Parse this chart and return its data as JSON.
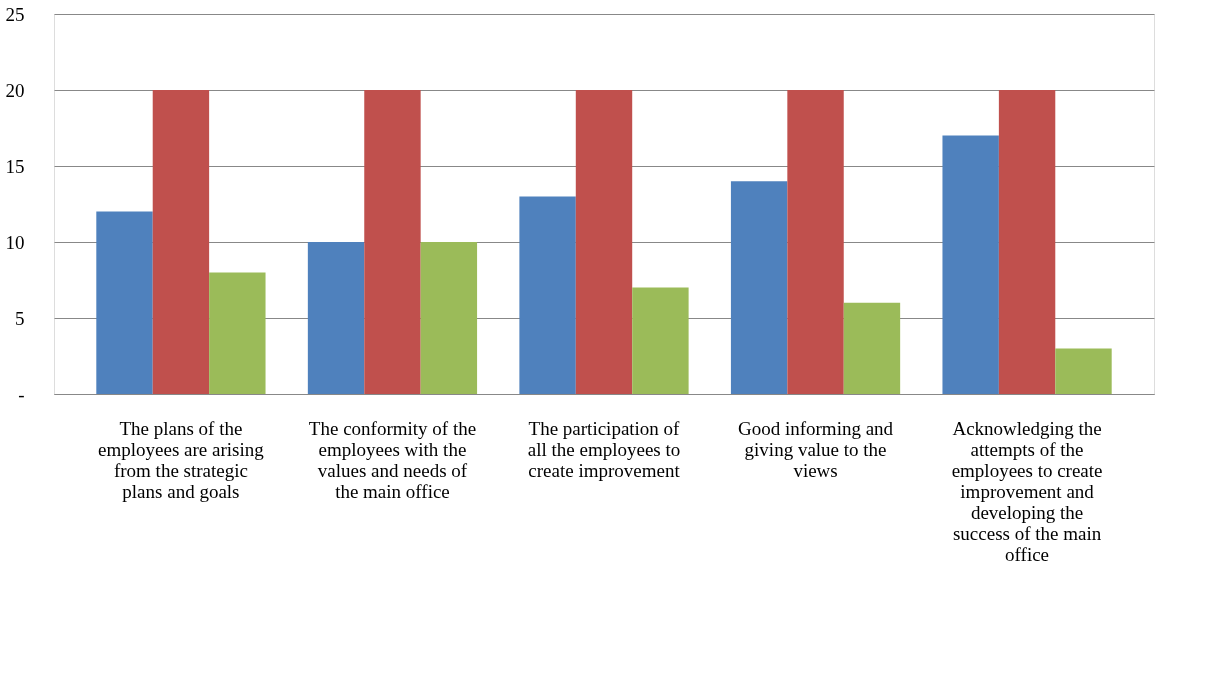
{
  "chart_data": {
    "type": "bar",
    "categories": [
      "The plans of the employees are arising from the strategic plans and goals",
      "The conformity of the employees with the values and needs of the main office",
      "The participation of all the employees to create improvement",
      "Good informing and giving value to the views",
      "Acknowledging the attempts of the employees to create improvement and developing the success of the main office"
    ],
    "series": [
      {
        "color": "#4f81bd",
        "values": [
          12,
          10,
          13,
          14,
          17
        ]
      },
      {
        "color": "#c0504d",
        "values": [
          20,
          20,
          20,
          20,
          20
        ]
      },
      {
        "color": "#9bbb59",
        "values": [
          8,
          10,
          7,
          6,
          3
        ]
      }
    ],
    "ylim": [
      0,
      25
    ],
    "yticks": [
      {
        "value": 0,
        "label": "-"
      },
      5,
      10,
      15,
      20,
      25
    ],
    "grid": "y",
    "legend": false
  }
}
